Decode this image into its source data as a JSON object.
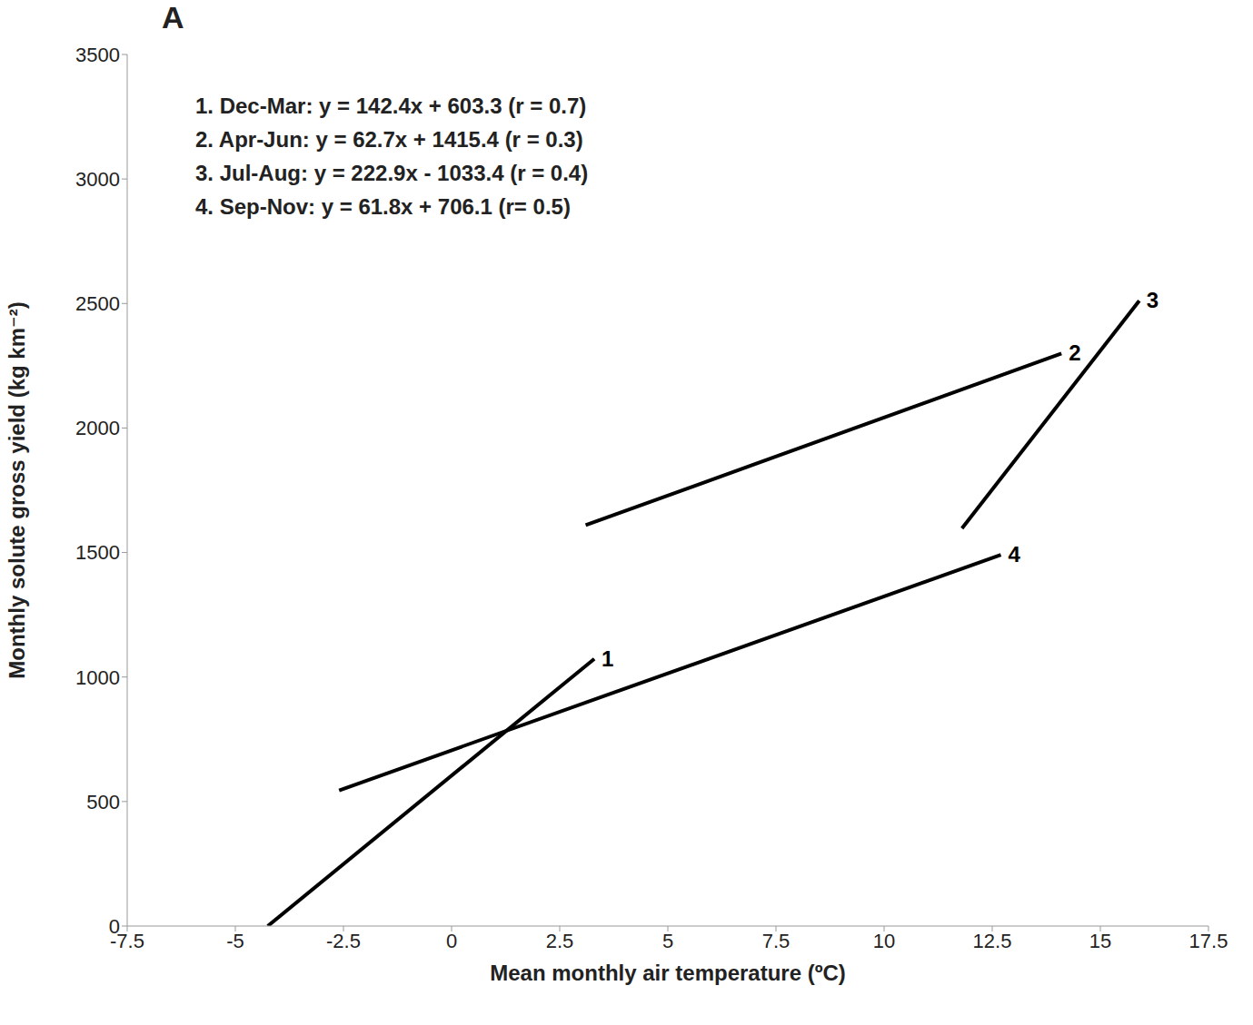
{
  "chart_data": {
    "type": "line",
    "title": "A",
    "x_label": "Mean monthly air temperature (ºC)",
    "y_label": "Monthly solute gross yield (kg km⁻²)",
    "annotations": [
      "1. Dec-Mar: y = 142.4x + 603.3 (r = 0.7)",
      "2. Apr-Jun: y = 62.7x + 1415.4 (r = 0.3)",
      "3. Jul-Aug: y = 222.9x - 1033.4 (r = 0.4)",
      "4. Sep-Nov: y = 61.8x + 706.1 (r= 0.5)"
    ],
    "series": [
      {
        "name": "1",
        "color": "#000000",
        "x": [
          -4.25,
          3.3
        ],
        "values": [
          0,
          1073
        ]
      },
      {
        "name": "2",
        "color": "#000000",
        "x": [
          3.1,
          14.1
        ],
        "values": [
          1610,
          2299
        ]
      },
      {
        "name": "3",
        "color": "#000000",
        "x": [
          11.8,
          15.9
        ],
        "values": [
          1597,
          2511
        ]
      },
      {
        "name": "4",
        "color": "#000000",
        "x": [
          -2.6,
          12.7
        ],
        "values": [
          545,
          1491
        ]
      }
    ],
    "xlim": [
      -7.5,
      17.5
    ],
    "xticks": [
      -7.5,
      -5,
      -2.5,
      0,
      2.5,
      5,
      7.5,
      10,
      12.5,
      15,
      17.5
    ],
    "ylim": [
      0,
      3500
    ],
    "yticks": [
      0,
      500,
      1000,
      1500,
      2000,
      2500,
      3000,
      3500
    ],
    "grid": false
  }
}
